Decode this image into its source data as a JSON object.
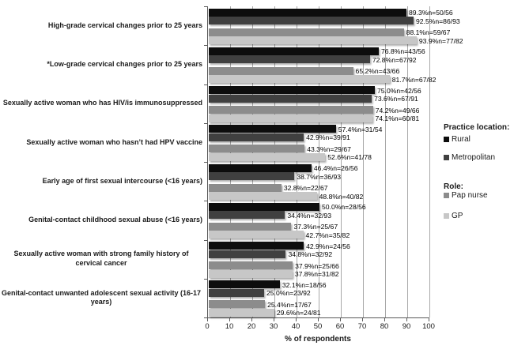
{
  "chart_data": {
    "type": "bar",
    "orientation": "horizontal",
    "xlabel": "% of respondents",
    "xlim": [
      0,
      100
    ],
    "x_tick_step": 10,
    "grid": "vertical",
    "legend_position": "right",
    "categories": [
      "High-grade cervical changes prior to 25 years",
      "*Low-grade cervical changes prior to 25 years",
      "Sexually active woman who has HIV/is immunosuppressed",
      "Sexually active woman who hasn’t had HPV vaccine",
      "Early age of first sexual intercourse (<16 years)",
      "Genital-contact childhood sexual abuse (<16 years)",
      "Sexually active woman with strong family history of cervical cancer",
      "Genital-contact unwanted adolescent sexual activity (16-17 years)"
    ],
    "series": [
      {
        "name": "Rural",
        "legend_group": "Practice location:",
        "color": "#0d0d0d",
        "values": [
          89.3,
          76.8,
          75.0,
          57.4,
          46.4,
          50.0,
          42.9,
          32.1
        ],
        "labels": [
          "89.3%n=50/56",
          "76.8%n=43/56",
          "75.0%n=42/56",
          "57.4%n=31/54",
          "46.4%n=26/56",
          "50.0%n=28/56",
          "42.9%n=24/56",
          "32.1%n=18/56"
        ]
      },
      {
        "name": "Metropolitan",
        "legend_group": "Practice location:",
        "color": "#404040",
        "values": [
          92.5,
          72.8,
          73.6,
          42.9,
          38.7,
          34.4,
          34.8,
          25.0
        ],
        "labels": [
          "92.5%n=86/93",
          "72.8%n=67/92",
          "73.6%n=67/91",
          "42.9%n=39/91",
          "38.7%n=36/93",
          "34.4%n=32/93",
          "34.8%n=32/92",
          "25.0%n=23/92"
        ]
      },
      {
        "name": "Pap nurse",
        "legend_group": "Role:",
        "color": "#8c8c8c",
        "values": [
          88.1,
          65.2,
          74.2,
          43.3,
          32.8,
          37.3,
          37.9,
          25.4
        ],
        "labels": [
          "88.1%n=59/67",
          "65.2%n=43/66",
          "74.2%n=49/66",
          "43.3%n=29/67",
          "32.8%n=22/67",
          "37.3%n=25/67",
          "37.9%n=25/66",
          "25.4%n=17/67"
        ]
      },
      {
        "name": "GP",
        "legend_group": "Role:",
        "color": "#c7c7c7",
        "values": [
          93.9,
          81.7,
          74.1,
          52.6,
          48.8,
          42.7,
          37.8,
          29.6
        ],
        "labels": [
          "93.9%n=77/82",
          "81.7%n=67/82",
          "74.1%n=60/81",
          "52.6%n=41/78",
          "48.8%n=40/82",
          "42.7%n=35/82",
          "37.8%n=31/82",
          "29.6%n=24/81"
        ]
      }
    ],
    "legend": {
      "groups": [
        {
          "title": "Practice location:",
          "items": [
            "Rural",
            "Metropolitan"
          ]
        },
        {
          "title": "Role:",
          "items": [
            "Pap nurse",
            "GP"
          ]
        }
      ]
    },
    "x_ticks": [
      0,
      10,
      20,
      30,
      40,
      50,
      60,
      70,
      80,
      90,
      100
    ]
  }
}
